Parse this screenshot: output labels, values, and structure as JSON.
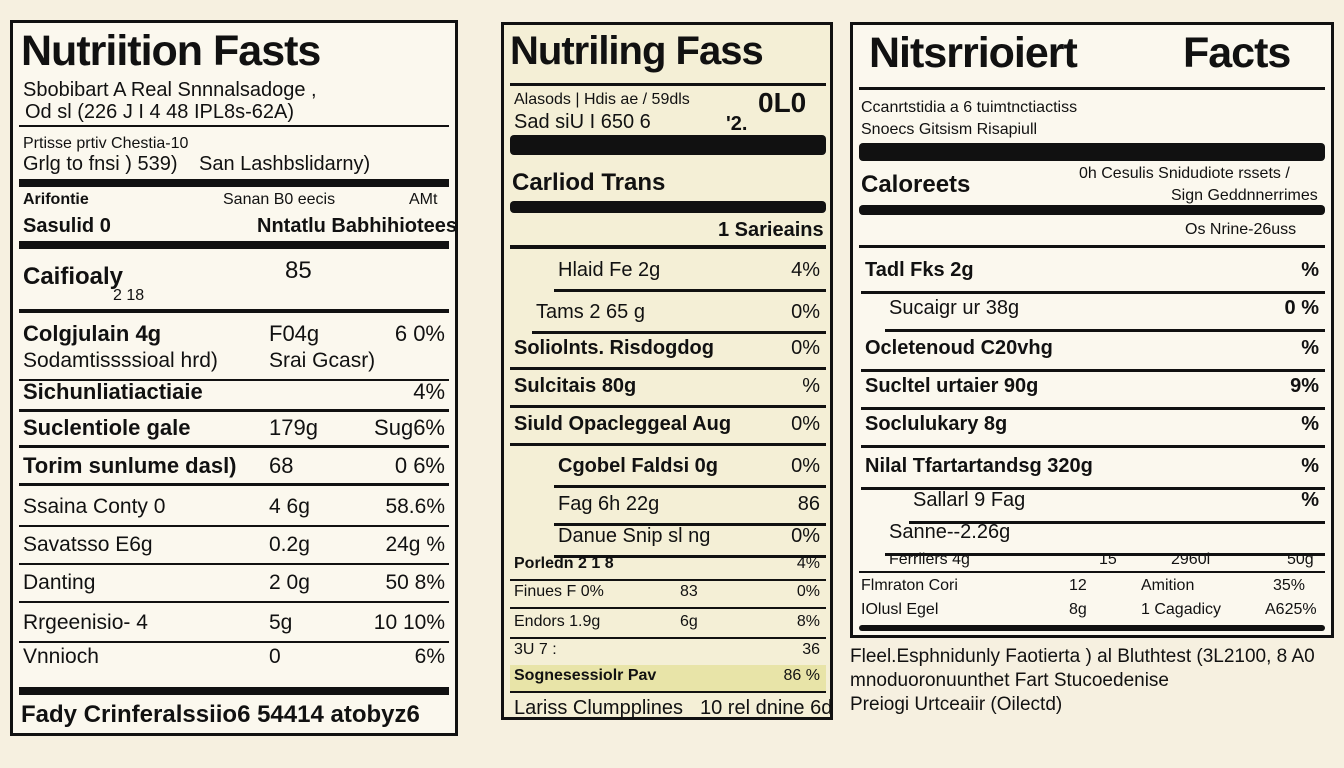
{
  "label1": {
    "title": "Nutriition Fasts",
    "subtitle_lines": [
      "Sbobibart A  Real Snnnalsadoge ,",
      "Od sl (226 J I 4 48 IPL8s-62A)"
    ],
    "serving_lines": [
      "Prtisse prtiv Chestia-10",
      "Grlg to fnsi ) 539)"
    ],
    "serving_right": "San Lashbslidarny)",
    "header_left_1": "Arifontie",
    "header_mid_1": "Sanan B0 eecis",
    "header_right_1": "AMt",
    "header_left_2": "Sasulid 0",
    "header_right_2": "Nntatlu Babhihiotees",
    "calories_label": "Caifioaly",
    "calories_value": "85",
    "calories_sub": "2 18",
    "rows": [
      {
        "name": "Colgjulain 4g",
        "mid": "F04g",
        "right": "6 0%",
        "bold": true
      },
      {
        "name": "Sodamtissssioal hrd)",
        "mid": "Srai Gcasr)",
        "right": "",
        "bold": false
      },
      {
        "name": "Sichunliatiactiaie",
        "mid": "",
        "right": "4%",
        "bold": true
      },
      {
        "name": "Suclentiole gale",
        "mid": "179g",
        "right": "Sug6%",
        "bold": true
      },
      {
        "name": "Torim sunlume dasl)",
        "mid": "68",
        "right": "0 6%",
        "bold": true
      },
      {
        "name": "Ssaina Conty 0",
        "mid": "4 6g",
        "right": "58.6%",
        "bold": false
      },
      {
        "name": "Savatsso E6g",
        "mid": "0.2g",
        "right": "24g %",
        "bold": false
      },
      {
        "name": "Danting",
        "mid": "2 0g",
        "right": "50 8%",
        "bold": false
      },
      {
        "name": "Rrgeenisio- 4",
        "mid": "5g",
        "right": "10 10%",
        "bold": false
      },
      {
        "name": "Vnnioch",
        "mid": "0",
        "right": "6%",
        "bold": false
      }
    ],
    "footer": "Fady Crinferalssiio6 54414 atobyz6"
  },
  "label2": {
    "title": "Nutriling Fass",
    "info_lines": [
      "Alasods  | Hdis ae / 59dls",
      "Sad siU I 650 6"
    ],
    "info_right_1": "0L0",
    "info_right_2": "'2.",
    "carb_label": "Carliod Trans",
    "servings": "1 Sarieains",
    "rows": [
      {
        "name": "Hlaid Fe  2g",
        "right": "4%",
        "indent": 2,
        "bold": false
      },
      {
        "name": "Tams 2 65 g",
        "right": "0%",
        "indent": 1,
        "bold": false
      },
      {
        "name": "Soliolnts. Risdogdog",
        "right": "0%",
        "indent": 0,
        "bold": true
      },
      {
        "name": "Sulcitais 80g",
        "right": "%",
        "indent": 0,
        "bold": true
      },
      {
        "name": "Siuld Opacleggeal Aug",
        "right": "0%",
        "indent": 0,
        "bold": true
      },
      {
        "name": "Cgobel Faldsi 0g",
        "right": "0%",
        "indent": 2,
        "bold": true
      },
      {
        "name": "Fag 6h 22g",
        "right": "86",
        "indent": 2,
        "bold": false
      },
      {
        "name": "Danue Snip sl ng",
        "right": "0%",
        "indent": 2,
        "bold": false
      }
    ],
    "small_rows": [
      {
        "name": "Porledn 2 1 8",
        "mid": "",
        "right": "4%",
        "highlight": false
      },
      {
        "name": "Finues F 0%",
        "mid": "83",
        "right": "0%",
        "highlight": false
      },
      {
        "name": "Endors  1.9g",
        "mid": "6g",
        "right": "8%",
        "highlight": false
      },
      {
        "name": "3U 7 :",
        "mid": "",
        "right": "36",
        "highlight": false
      },
      {
        "name": "Sognesessiolr Pav",
        "mid": "",
        "right": "86 %",
        "highlight": true
      }
    ],
    "footer": "Lariss Clumpplines",
    "footer_right": "10 rel dnine 6d"
  },
  "label3": {
    "title_left": "Nitsrrioiert",
    "title_right": "Facts",
    "info_line_1": "Ccanrtstidia a 6 tuimtnctiactiss",
    "info_line_2": "Snoecs Gitsism Risapiull",
    "calories_label": "Caloreets",
    "calories_right_1": "0h  Cesulis Snidudiote rssets /",
    "calories_right_2": "Sign Geddnnerrimes",
    "dv_header": "Os Nrine-26uss",
    "rows": [
      {
        "name": "Tadl Fks 2g",
        "right": "%",
        "indent": 0,
        "bold": true
      },
      {
        "name": "Sucaigr ur 38g",
        "right": "0 %",
        "indent": 1,
        "bold": false
      },
      {
        "name": "Ocletenoud C20vhg",
        "right": "%",
        "indent": 0,
        "bold": true
      },
      {
        "name": "Sucltel urtaier 90g",
        "right": "9%",
        "indent": 0,
        "bold": true
      },
      {
        "name": "Soclulukary 8g",
        "right": "%",
        "indent": 0,
        "bold": true
      },
      {
        "name": "Nilal Tfartartandsg 320g",
        "right": "%",
        "indent": 0,
        "bold": true
      },
      {
        "name": "Sallarl 9 Fag",
        "right": "%",
        "indent": 2,
        "bold": false
      },
      {
        "name": "Sanne--2.26g",
        "right": "",
        "indent": 1,
        "bold": false
      }
    ],
    "table_row_1": [
      "Ferrliers  4g",
      "15",
      "2960l",
      "50g"
    ],
    "table_row_2": [
      "Flmraton Cori",
      "12",
      "Amition",
      "35%"
    ],
    "table_row_3": [
      "IOlusl Egel",
      "8g",
      "1 Cagadicy",
      "A625%"
    ],
    "footnote_1": "Fleel.Esphnidunly Faotierta ) al Bluthtest (3L2100, 8 A0",
    "footnote_2": "mnoduoronuunthet Fart Stucoedenise",
    "footnote_3": "Preiogi Urtceaiir (Oilectd)"
  }
}
